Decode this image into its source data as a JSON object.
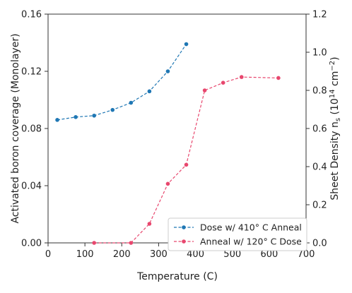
{
  "chart_data": {
    "type": "line",
    "xlabel": "Temperature (C)",
    "ylabel_left": "Activated boron coverage (Monolayer)",
    "ylabel_right": "Sheet Density n",
    "ylabel_right_sub": "s",
    "ylabel_right_unit_open": " (10",
    "ylabel_right_unit_exp": "14",
    "ylabel_right_unit_mid": " cm",
    "ylabel_right_unit_exp2": "−2",
    "ylabel_right_unit_close": ")",
    "xlim": [
      0,
      700
    ],
    "ylim_left": [
      0,
      0.16
    ],
    "ylim_right": [
      0,
      1.2
    ],
    "x_ticks": [
      "0",
      "100",
      "200",
      "300",
      "400",
      "500",
      "600",
      "700"
    ],
    "y_left_ticks": [
      "0.00",
      "0.04",
      "0.08",
      "0.12",
      "0.16"
    ],
    "y_right_ticks": [
      "0.0",
      "0.2",
      "0.4",
      "0.6",
      "0.8",
      "1.0",
      "1.2"
    ],
    "grid": false,
    "legend_position": "bottom-right",
    "series": [
      {
        "name": "Dose w/ 410° C Anneal",
        "axis": "left",
        "color": "#1f77b4",
        "x": [
          25,
          75,
          125,
          175,
          225,
          275,
          325,
          375
        ],
        "y": [
          0.086,
          0.088,
          0.089,
          0.093,
          0.098,
          0.106,
          0.12,
          0.139
        ]
      },
      {
        "name": "Anneal w/ 120° C Dose",
        "axis": "right",
        "color": "#e8476e",
        "x": [
          125,
          225,
          275,
          325,
          375,
          425,
          475,
          525,
          625
        ],
        "y": [
          0.0,
          0.0,
          0.1,
          0.31,
          0.41,
          0.8,
          0.84,
          0.87,
          0.865
        ]
      }
    ]
  }
}
